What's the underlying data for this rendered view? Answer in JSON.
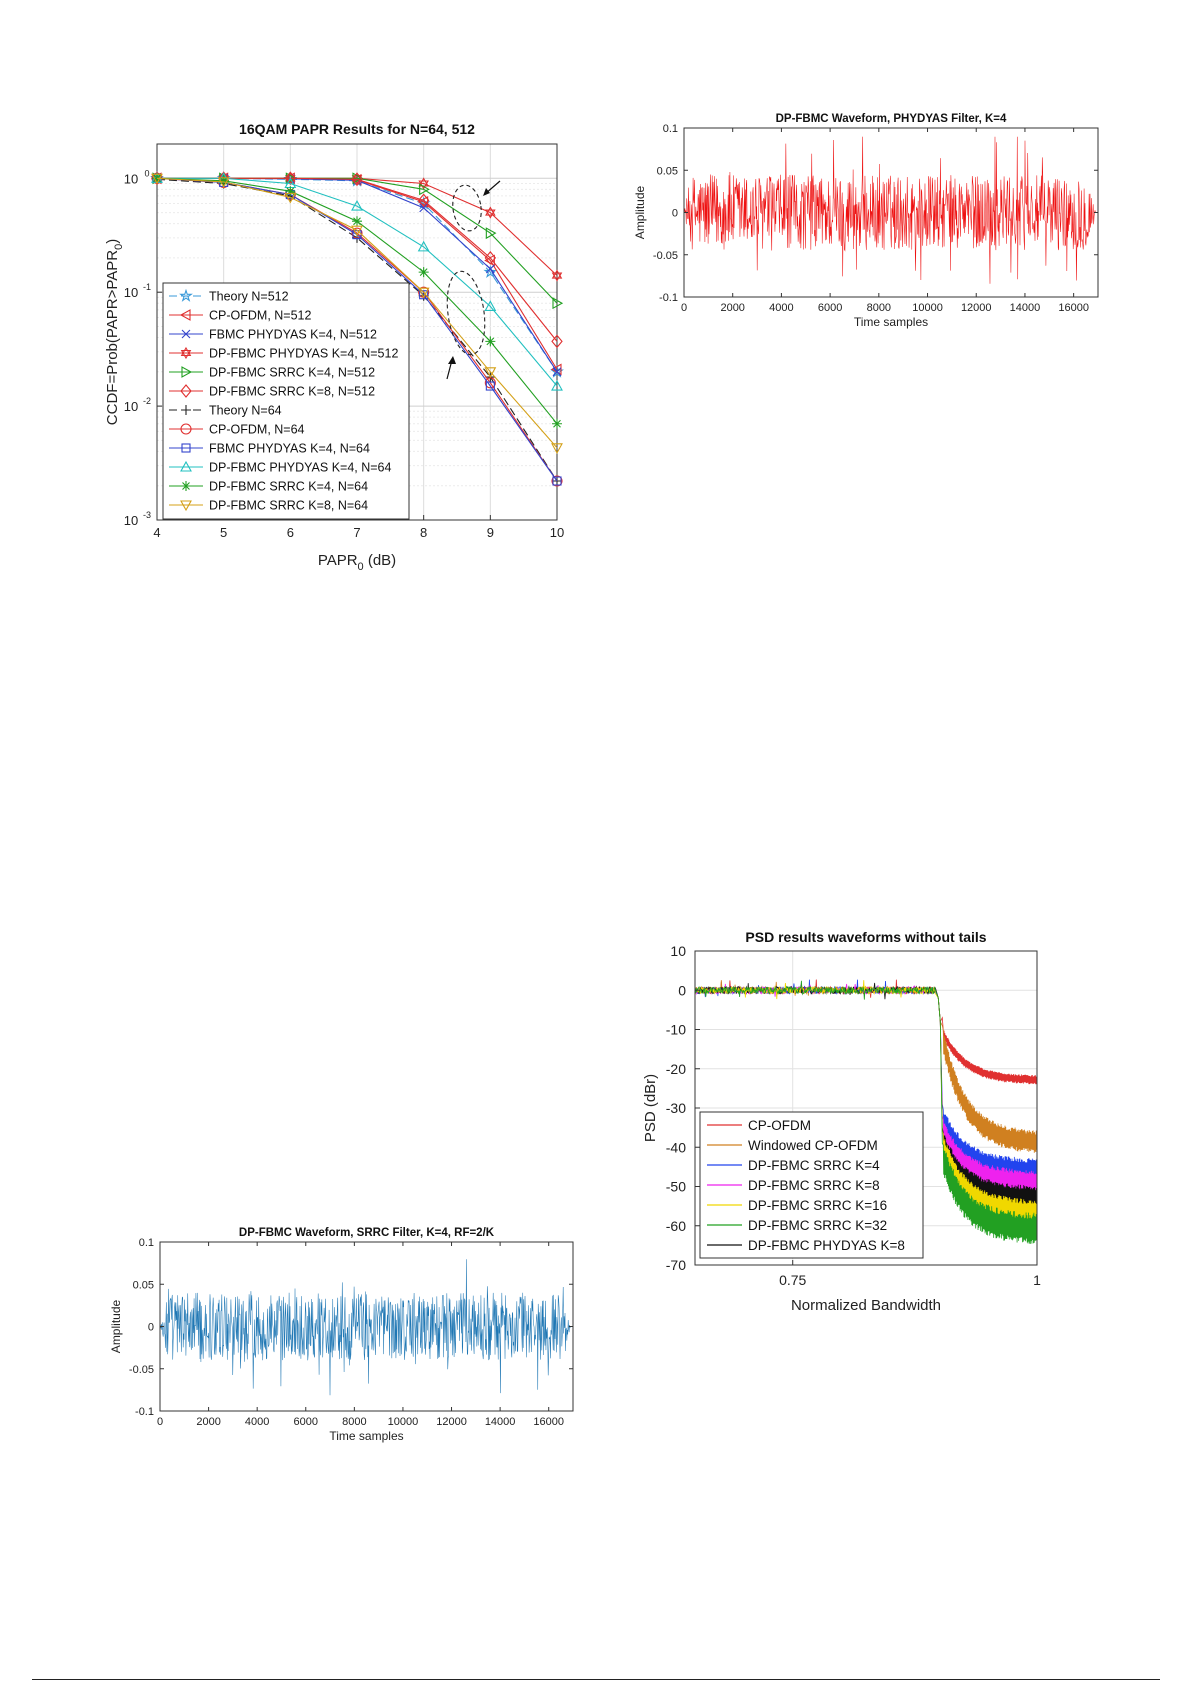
{
  "chart_data": [
    {
      "id": "papr",
      "type": "line",
      "title": "16QAM PAPR Results for N=64, 512",
      "xlabel": "PAPR",
      "xlabel_sub": "0",
      "xlabel_unit": " (dB)",
      "ylabel": "CCDF=Prob(PAPR>PAPR",
      "ylabel_sub": "0",
      "ylabel_end": ")",
      "xlim": [
        4,
        10
      ],
      "ylim": [
        0.001,
        2
      ],
      "yscale": "log",
      "grid": true,
      "legend_position": "lower-left",
      "x_ticks": [
        4,
        5,
        6,
        7,
        8,
        9,
        10
      ],
      "x_tick_labels": [
        "4",
        "5",
        "6",
        "7",
        "8",
        "9",
        "10"
      ],
      "y_ticks": [
        1,
        0.1,
        0.01,
        0.001
      ],
      "y_tick_base": "10",
      "y_tick_exponents": [
        "0",
        "-1",
        "-2",
        "-3"
      ],
      "x": [
        4,
        5,
        6,
        7,
        8,
        9,
        10
      ],
      "series": [
        {
          "name": "Theory N=512",
          "color": "#3a9ad9",
          "marker": "star",
          "dash": "8,4",
          "values": [
            1.0,
            1.0,
            0.98,
            0.95,
            0.6,
            0.15,
            0.02
          ]
        },
        {
          "name": "CP-OFDM, N=512",
          "color": "#e03030",
          "marker": "tri-left",
          "dash": "",
          "values": [
            1.0,
            1.0,
            1.0,
            0.97,
            0.62,
            0.19,
            0.021
          ]
        },
        {
          "name": "FBMC PHYDYAS K=4, N=512",
          "color": "#3344cc",
          "marker": "x",
          "dash": "",
          "values": [
            1.0,
            1.0,
            0.99,
            0.96,
            0.55,
            0.16,
            0.02
          ]
        },
        {
          "name": "DP-FBMC PHYDYAS K=4, N=512",
          "color": "#e03030",
          "marker": "hexagram",
          "dash": "",
          "values": [
            1.0,
            1.0,
            1.0,
            1.0,
            0.9,
            0.5,
            0.14
          ]
        },
        {
          "name": "DP-FBMC SRRC K=4, N=512",
          "color": "#22a022",
          "marker": "tri-right",
          "dash": "",
          "values": [
            1.0,
            1.0,
            1.0,
            1.0,
            0.8,
            0.33,
            0.08
          ]
        },
        {
          "name": "DP-FBMC SRRC K=8, N=512",
          "color": "#e03030",
          "marker": "diamond",
          "dash": "",
          "values": [
            1.0,
            1.0,
            1.0,
            0.98,
            0.64,
            0.2,
            0.037
          ]
        },
        {
          "name": "Theory N=64",
          "color": "#222222",
          "marker": "plus",
          "dash": "8,4",
          "values": [
            0.98,
            0.9,
            0.7,
            0.3,
            0.093,
            0.018,
            0.0022
          ]
        },
        {
          "name": "CP-OFDM, N=64",
          "color": "#e03030",
          "marker": "circle",
          "dash": "",
          "values": [
            1.0,
            0.92,
            0.72,
            0.33,
            0.1,
            0.016,
            0.0022
          ]
        },
        {
          "name": "FBMC PHYDYAS K=4, N=64",
          "color": "#3344cc",
          "marker": "square",
          "dash": "",
          "values": [
            1.0,
            0.92,
            0.72,
            0.32,
            0.095,
            0.015,
            0.0022
          ]
        },
        {
          "name": "DP-FBMC PHYDYAS K=4, N=64",
          "color": "#22c0c0",
          "marker": "tri-up",
          "dash": "",
          "values": [
            1.0,
            1.0,
            0.9,
            0.57,
            0.25,
            0.075,
            0.015
          ]
        },
        {
          "name": "DP-FBMC SRRC K=4, N=64",
          "color": "#22a022",
          "marker": "asterisk",
          "dash": "",
          "values": [
            1.0,
            0.95,
            0.77,
            0.42,
            0.15,
            0.037,
            0.007
          ]
        },
        {
          "name": "DP-FBMC SRRC K=8, N=64",
          "color": "#d4a017",
          "marker": "tri-down",
          "dash": "",
          "values": [
            1.0,
            0.93,
            0.68,
            0.35,
            0.1,
            0.02,
            0.0043
          ]
        }
      ]
    },
    {
      "id": "wave-phydyas",
      "type": "line",
      "title": "DP-FBMC Waveform, PHYDYAS Filter, K=4",
      "xlabel": "Time samples",
      "ylabel": "Amplitude",
      "xlim": [
        0,
        17000
      ],
      "ylim": [
        -0.1,
        0.1
      ],
      "grid": false,
      "color": "#ee1111",
      "x_ticks": [
        0,
        2000,
        4000,
        6000,
        8000,
        10000,
        12000,
        14000,
        16000
      ],
      "x_tick_labels": [
        "0",
        "2000",
        "4000",
        "6000",
        "8000",
        "10000",
        "12000",
        "14000",
        "16000"
      ],
      "y_ticks": [
        0.1,
        0.05,
        0,
        -0.05,
        -0.1
      ],
      "y_tick_labels": [
        "0.1",
        "0.05",
        "0",
        "-0.05",
        "-0.1"
      ],
      "x_start": 0,
      "x_end": 16896,
      "typical_amplitude": 0.045,
      "peak_amplitude": 0.09
    },
    {
      "id": "wave-srrc",
      "type": "line",
      "title": "DP-FBMC Waveform, SRRC Filter, K=4, RF=2/K",
      "xlabel": "Time samples",
      "ylabel": "Amplitude",
      "xlim": [
        0,
        17000
      ],
      "ylim": [
        -0.1,
        0.1
      ],
      "grid": false,
      "color": "#1f77b4",
      "x_ticks": [
        0,
        2000,
        4000,
        6000,
        8000,
        10000,
        12000,
        14000,
        16000
      ],
      "x_tick_labels": [
        "0",
        "2000",
        "4000",
        "6000",
        "8000",
        "10000",
        "12000",
        "14000",
        "16000"
      ],
      "y_ticks": [
        0.1,
        0.05,
        0,
        -0.05,
        -0.1
      ],
      "y_tick_labels": [
        "0.1",
        "0.05",
        "0",
        "-0.05",
        "-0.1"
      ],
      "x_start": 0,
      "x_end": 16896,
      "typical_amplitude": 0.04,
      "peak_amplitude": 0.085
    },
    {
      "id": "psd",
      "type": "line",
      "title": "PSD results waveforms without tails",
      "xlabel": "Normalized Bandwidth",
      "ylabel": "PSD (dBr)",
      "xlim": [
        0.65,
        1.0
      ],
      "ylim": [
        -70,
        10
      ],
      "grid": true,
      "legend_position": "lower-left",
      "x_ticks": [
        0.75,
        1
      ],
      "x_tick_labels": [
        "0.75",
        "1"
      ],
      "y_ticks": [
        10,
        0,
        -10,
        -20,
        -30,
        -40,
        -50,
        -60,
        -70
      ],
      "y_tick_labels": [
        "10",
        "0",
        "-10",
        "-20",
        "-30",
        "-40",
        "-50",
        "-60",
        "-70"
      ],
      "band_edge": 0.9,
      "series": [
        {
          "name": "CP-OFDM",
          "color": "#e03030",
          "start_level": -11,
          "end_level": -23,
          "ripple": 1.2
        },
        {
          "name": "Windowed CP-OFDM",
          "color": "#d08020",
          "start_level": -13,
          "end_level": -39,
          "ripple": 3.0
        },
        {
          "name": "DP-FBMC SRRC K=4",
          "color": "#2244ee",
          "start_level": -33,
          "end_level": -46,
          "ripple": 3.0
        },
        {
          "name": "DP-FBMC SRRC K=8",
          "color": "#ee22ee",
          "start_level": -36,
          "end_level": -49,
          "ripple": 3.0
        },
        {
          "name": "DP-FBMC SRRC K=16",
          "color": "#f0d800",
          "start_level": -40,
          "end_level": -57,
          "ripple": 3.5
        },
        {
          "name": "DP-FBMC SRRC K=32",
          "color": "#22a022",
          "start_level": -43,
          "end_level": -61,
          "ripple": 4.0
        },
        {
          "name": "DP-FBMC PHYDYAS K=8",
          "color": "#111111",
          "start_level": -39,
          "end_level": -53,
          "ripple": 3.0
        }
      ]
    }
  ]
}
